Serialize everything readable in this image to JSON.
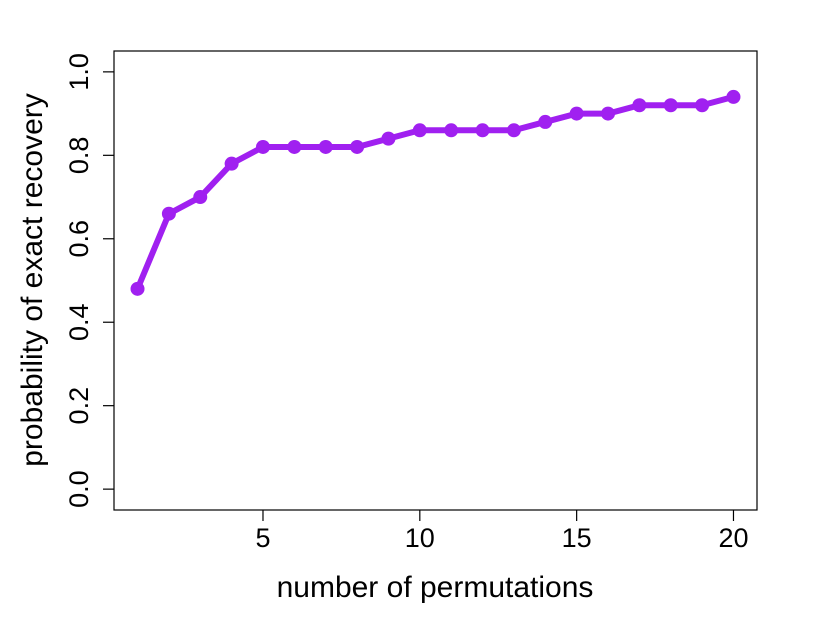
{
  "chart_data": {
    "type": "line",
    "xlabel": "number of permutations",
    "ylabel": "probability of exact recovery",
    "xlim": [
      0.25,
      20.75
    ],
    "ylim": [
      -0.05,
      1.05
    ],
    "x_ticks": [
      5,
      10,
      15,
      20
    ],
    "y_ticks": [
      0.0,
      0.2,
      0.4,
      0.6,
      0.8,
      1.0
    ],
    "x_tick_labels": [
      "5",
      "10",
      "15",
      "20"
    ],
    "y_tick_labels": [
      "0.0",
      "0.2",
      "0.4",
      "0.6",
      "0.8",
      "1.0"
    ],
    "grid": false,
    "series": [
      {
        "color": "#a020f0",
        "x": [
          1,
          2,
          3,
          4,
          5,
          6,
          7,
          8,
          9,
          10,
          11,
          12,
          13,
          14,
          15,
          16,
          17,
          18,
          19,
          20
        ],
        "y": [
          0.48,
          0.66,
          0.7,
          0.78,
          0.82,
          0.82,
          0.82,
          0.82,
          0.84,
          0.86,
          0.86,
          0.86,
          0.86,
          0.88,
          0.9,
          0.9,
          0.92,
          0.92,
          0.92,
          0.94
        ]
      }
    ]
  }
}
